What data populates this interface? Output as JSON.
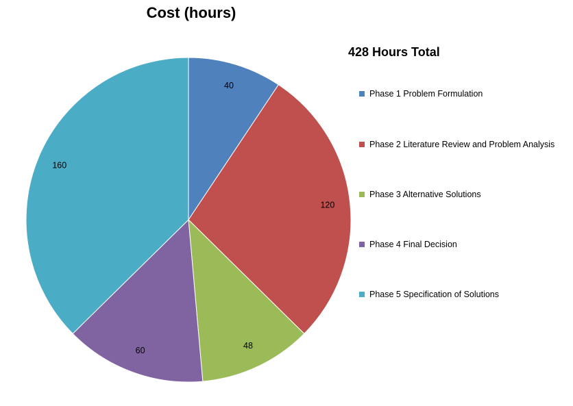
{
  "chart_data": {
    "type": "pie",
    "title": "Cost (hours)",
    "subtitle": "428 Hours Total",
    "legend_position": "right",
    "slices": [
      {
        "label": "Phase 1 Problem Formulation",
        "value": 40,
        "color": "#4f81bd"
      },
      {
        "label": "Phase 2 Literature Review and Problem Analysis",
        "value": 120,
        "color": "#c0504d"
      },
      {
        "label": "Phase 3 Alternative Solutions",
        "value": 48,
        "color": "#9bbb59"
      },
      {
        "label": "Phase 4 Final Decision",
        "value": 60,
        "color": "#8064a2"
      },
      {
        "label": "Phase 5 Specification of Solutions",
        "value": 160,
        "color": "#4bacc6"
      }
    ]
  }
}
